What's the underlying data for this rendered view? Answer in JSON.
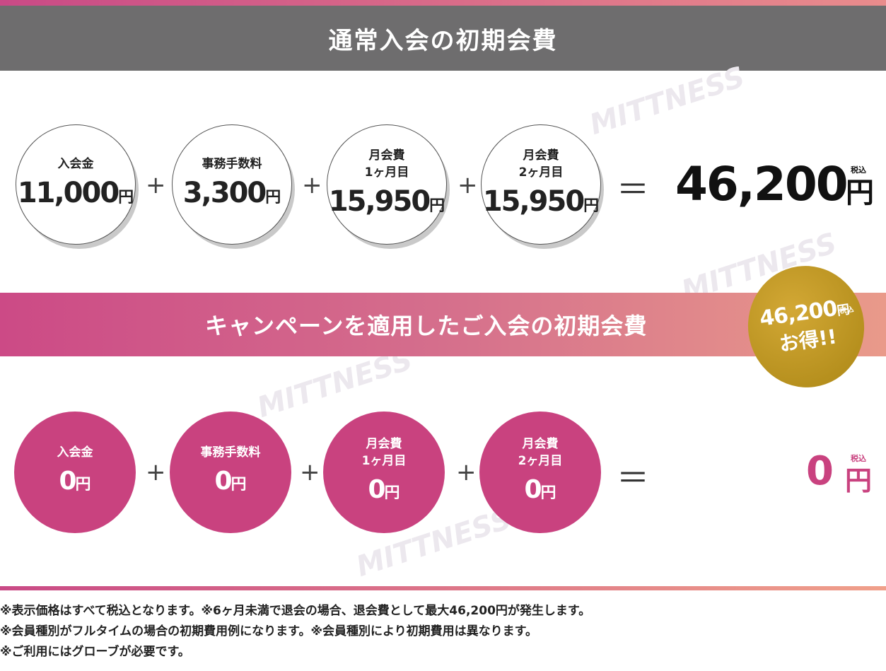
{
  "regular": {
    "title": "通常入会の初期会費",
    "items": [
      {
        "label": "入会金",
        "amount": "11,000",
        "unit": "円"
      },
      {
        "label": "事務手数料",
        "amount": "3,300",
        "unit": "円"
      },
      {
        "label": "月会費\n1ヶ月目",
        "amount": "15,950",
        "unit": "円"
      },
      {
        "label": "月会費\n2ヶ月目",
        "amount": "15,950",
        "unit": "円"
      }
    ],
    "plus": "+",
    "equals": "＝",
    "total": "46,200",
    "total_unit": "円",
    "tax_label": "税込"
  },
  "campaign": {
    "title": "キャンペーンを適用したご入会の初期会費",
    "badge_amount": "46,200",
    "badge_unit": "円",
    "badge_tax": "税込",
    "badge_text": "お得!!",
    "items": [
      {
        "label": "入会金",
        "amount": "0",
        "unit": "円"
      },
      {
        "label": "事務手数料",
        "amount": "0",
        "unit": "円"
      },
      {
        "label": "月会費\n1ヶ月目",
        "amount": "0",
        "unit": "円"
      },
      {
        "label": "月会費\n2ヶ月目",
        "amount": "0",
        "unit": "円"
      }
    ],
    "plus": "+",
    "equals": "＝",
    "total": "0",
    "total_unit": "円",
    "tax_label": "税込"
  },
  "watermark": "MITTNESS",
  "notes": [
    "※表示価格はすべて税込となります。※6ヶ月未満で退会の場合、退会費として最大46,200円が発生します。",
    "※会員種別がフルタイムの場合の初期費用例になります。※会員種別により初期費用は異なります。",
    "※ご利用にはグローブが必要です。"
  ],
  "colors": {
    "header_gray": "#6e6d6e",
    "pink": "#c9427f",
    "gold": "#c49a25"
  }
}
